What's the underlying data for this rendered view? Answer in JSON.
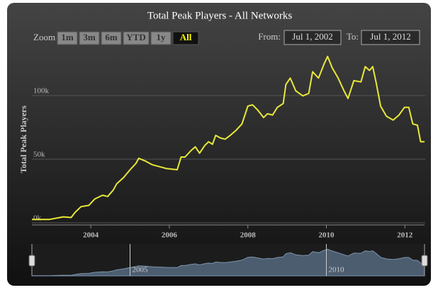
{
  "chart_data": {
    "type": "line",
    "title": "Total Peak Players - All Networks",
    "y_label": "Total Peak Players",
    "x": [
      2002.5,
      2002.95,
      2003.3,
      2003.5,
      2003.6,
      2003.75,
      2003.95,
      2004.1,
      2004.3,
      2004.43,
      2004.57,
      2004.66,
      2004.84,
      2005.0,
      2005.15,
      2005.22,
      2005.38,
      2005.56,
      2005.92,
      2006.2,
      2006.3,
      2006.4,
      2006.55,
      2006.66,
      2006.77,
      2006.9,
      2007.0,
      2007.1,
      2007.18,
      2007.3,
      2007.42,
      2007.55,
      2007.7,
      2007.85,
      2008.0,
      2008.12,
      2008.25,
      2008.4,
      2008.5,
      2008.63,
      2008.75,
      2008.9,
      2008.97,
      2009.08,
      2009.22,
      2009.4,
      2009.55,
      2009.65,
      2009.8,
      2009.94,
      2010.03,
      2010.15,
      2010.3,
      2010.45,
      2010.55,
      2010.7,
      2010.88,
      2010.99,
      2011.1,
      2011.18,
      2011.27,
      2011.38,
      2011.53,
      2011.7,
      2011.85,
      2011.99,
      2012.1,
      2012.2,
      2012.32,
      2012.4,
      2012.5
    ],
    "values": [
      1000,
      1000,
      3000,
      2500,
      6500,
      11000,
      12000,
      17000,
      20000,
      19000,
      24000,
      29000,
      34000,
      40000,
      45000,
      49000,
      47000,
      44000,
      41000,
      40000,
      50000,
      50000,
      55000,
      58000,
      53000,
      59000,
      62000,
      60000,
      67000,
      65000,
      64000,
      67000,
      71000,
      76000,
      90000,
      91000,
      87000,
      81000,
      84000,
      83000,
      89000,
      92000,
      107000,
      112000,
      102000,
      98000,
      100000,
      117000,
      112000,
      123000,
      129000,
      120000,
      112000,
      102000,
      96000,
      110000,
      109000,
      121000,
      118000,
      121000,
      108000,
      90000,
      82000,
      79000,
      83000,
      89000,
      89000,
      76000,
      75000,
      62000,
      62000
    ],
    "color": "#e8e83a",
    "xlim": [
      2002.5,
      2012.5
    ],
    "xticks": [
      2004,
      2006,
      2008,
      2010,
      2012
    ],
    "ylim": [
      0,
      130000
    ],
    "yticks": [
      {
        "value": 0,
        "label": "0k"
      },
      {
        "value": 50000,
        "label": "50k"
      },
      {
        "value": 100000,
        "label": "100k"
      }
    ],
    "grid": true,
    "navigator_xticks": [
      2005,
      2010
    ]
  },
  "range_selector": {
    "label": "Zoom",
    "buttons": [
      "1m",
      "3m",
      "6m",
      "YTD",
      "1y",
      "All"
    ],
    "selected": 5
  },
  "date_inputs": {
    "from_label": "From:",
    "from": "Jul 1, 2002",
    "to_label": "To:",
    "to": "Jul 1, 2012"
  }
}
